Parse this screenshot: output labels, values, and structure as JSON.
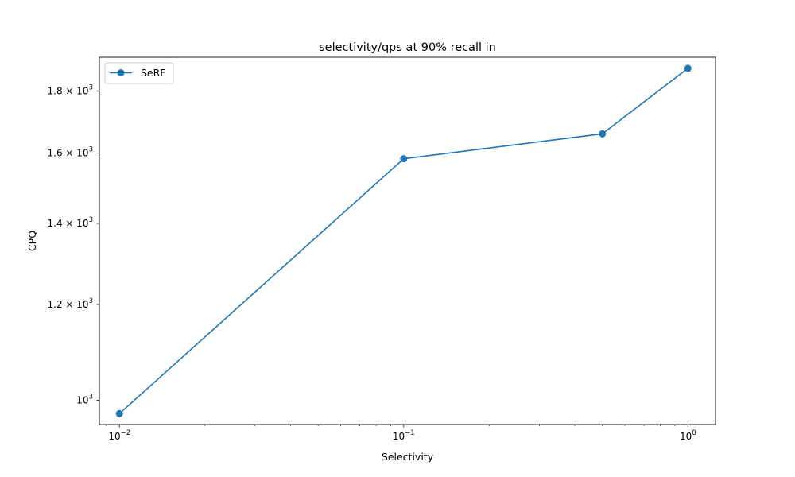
{
  "chart_data": {
    "type": "line",
    "title": "selectivity/qps at 90% recall in",
    "xlabel": "Selectivity",
    "ylabel": "CPQ",
    "xscale": "log",
    "yscale": "log",
    "xlim": [
      0.0085,
      1.25
    ],
    "ylim": [
      955,
      1920
    ],
    "xticks": [
      {
        "value": 0.01,
        "base": "10",
        "exp": "−2"
      },
      {
        "value": 0.1,
        "base": "10",
        "exp": "−1"
      },
      {
        "value": 1,
        "base": "10",
        "exp": "0"
      }
    ],
    "yticks": [
      {
        "value": 1000,
        "mant": "",
        "base": "10",
        "exp": "3"
      },
      {
        "value": 1200,
        "mant": "1.2 × ",
        "base": "10",
        "exp": "3"
      },
      {
        "value": 1400,
        "mant": "1.4 × ",
        "base": "10",
        "exp": "3"
      },
      {
        "value": 1600,
        "mant": "1.6 × ",
        "base": "10",
        "exp": "3"
      },
      {
        "value": 1800,
        "mant": "1.8 × ",
        "base": "10",
        "exp": "3"
      }
    ],
    "grid": false,
    "legend_position": "upper-left",
    "series": [
      {
        "name": "SeRF",
        "color": "#1f77b4",
        "marker": "circle",
        "x": [
          0.01,
          0.1,
          0.5,
          1.0
        ],
        "y": [
          975,
          1583,
          1660,
          1880
        ]
      }
    ]
  }
}
